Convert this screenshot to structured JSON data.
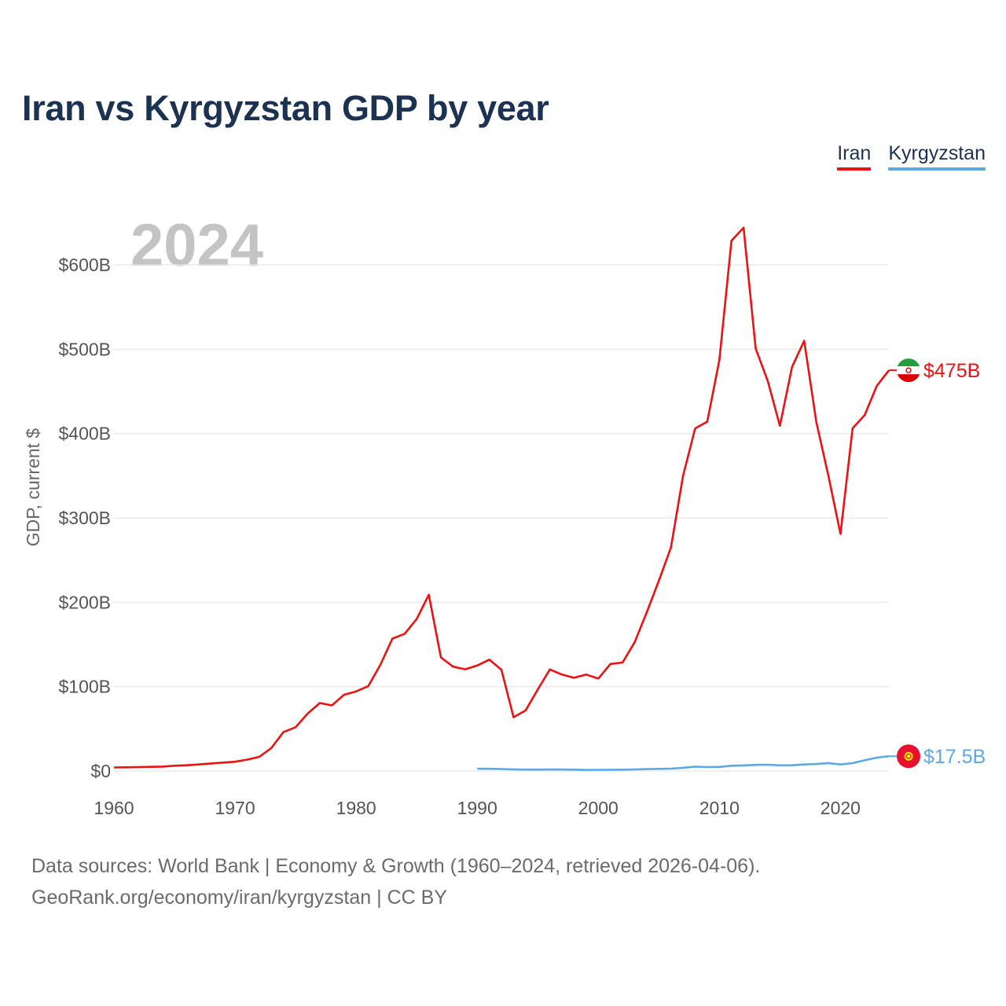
{
  "title": "Iran vs Kyrgyzstan GDP by year",
  "legend": {
    "iran": "Iran",
    "kyrgyzstan": "Kyrgyzstan"
  },
  "colors": {
    "iran": "#ee1111",
    "kyrgyzstan": "#5fa8e6",
    "title": "#1b3252"
  },
  "sources": {
    "line1": "Data sources: World Bank | Economy & Growth (1960–2024, retrieved 2026-04-06).",
    "line2": "GeoRank.org/economy/iran/kyrgyzstan | CC BY"
  },
  "chart_data": {
    "type": "line",
    "current_year": "2024",
    "ylabel": "GDP, current $",
    "xlabel": "",
    "xlim": [
      1960,
      2024
    ],
    "ylim": [
      0,
      600
    ],
    "unit": "billion USD",
    "y_ticks": [
      0,
      100,
      200,
      300,
      400,
      500,
      600
    ],
    "y_tick_labels": [
      "$0",
      "$100B",
      "$200B",
      "$300B",
      "$400B",
      "$500B",
      "$600B"
    ],
    "x_ticks": [
      1960,
      1970,
      1980,
      1990,
      2000,
      2010,
      2020
    ],
    "x_tick_labels": [
      "1960",
      "1970",
      "1980",
      "1990",
      "2000",
      "2010",
      "2020"
    ],
    "series": [
      {
        "name": "Iran",
        "end_label": "$475B",
        "x": [
          1960,
          1961,
          1962,
          1963,
          1964,
          1965,
          1966,
          1967,
          1968,
          1969,
          1970,
          1971,
          1972,
          1973,
          1974,
          1975,
          1976,
          1977,
          1978,
          1979,
          1980,
          1981,
          1982,
          1983,
          1984,
          1985,
          1986,
          1987,
          1988,
          1989,
          1990,
          1991,
          1992,
          1993,
          1994,
          1995,
          1996,
          1997,
          1998,
          1999,
          2000,
          2001,
          2002,
          2003,
          2004,
          2005,
          2006,
          2007,
          2008,
          2009,
          2010,
          2011,
          2012,
          2013,
          2014,
          2015,
          2016,
          2017,
          2018,
          2019,
          2020,
          2021,
          2022,
          2023,
          2024
        ],
        "values": [
          4.2,
          4.4,
          4.7,
          4.9,
          5.2,
          6.2,
          6.8,
          7.7,
          8.9,
          10.0,
          11.0,
          13.5,
          16.8,
          27.3,
          46.2,
          51.9,
          68.1,
          80.6,
          77.8,
          90.4,
          94.4,
          100.5,
          125.8,
          157.0,
          162.6,
          180.2,
          209.0,
          134.6,
          123.7,
          120.6,
          125.0,
          132.0,
          120.0,
          63.7,
          71.8,
          96.5,
          120.4,
          114.3,
          110.5,
          114.3,
          109.6,
          126.9,
          128.6,
          152.6,
          188.1,
          225.6,
          265.0,
          349.9,
          406.1,
          414.1,
          487.1,
          628.6,
          644.0,
          500.7,
          462.3,
          409.2,
          479.0,
          510.0,
          414.0,
          350.0,
          281.0,
          406.2,
          422.0,
          456.5,
          475.0
        ]
      },
      {
        "name": "Kyrgyzstan",
        "end_label": "$17.5B",
        "x": [
          1990,
          1991,
          1992,
          1993,
          1994,
          1995,
          1996,
          1997,
          1998,
          1999,
          2000,
          2001,
          2002,
          2003,
          2004,
          2005,
          2006,
          2007,
          2008,
          2009,
          2010,
          2011,
          2012,
          2013,
          2014,
          2015,
          2016,
          2017,
          2018,
          2019,
          2020,
          2021,
          2022,
          2023,
          2024
        ],
        "values": [
          2.7,
          2.6,
          2.3,
          2.0,
          1.7,
          1.7,
          1.8,
          1.8,
          1.6,
          1.2,
          1.4,
          1.5,
          1.6,
          1.9,
          2.2,
          2.5,
          2.8,
          3.8,
          5.1,
          4.7,
          4.8,
          6.2,
          6.6,
          7.3,
          7.5,
          6.7,
          6.8,
          7.7,
          8.3,
          9.4,
          7.7,
          9.3,
          12.7,
          15.8,
          17.5
        ]
      }
    ]
  }
}
